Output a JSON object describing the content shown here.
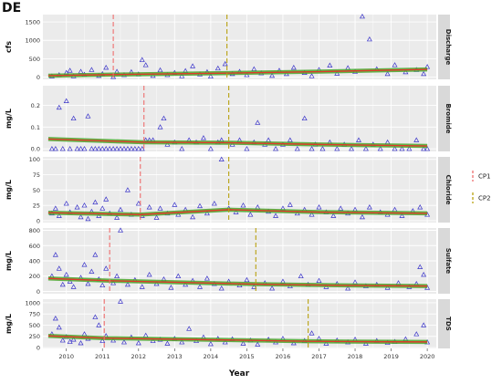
{
  "figure": {
    "title": "DE",
    "xlabel": "Year",
    "legend": {
      "items": [
        {
          "label": "CP1",
          "color": "#ef6e6e"
        },
        {
          "label": "CP2",
          "color": "#b8a10f"
        }
      ]
    },
    "colors": {
      "points": "#3a34c9",
      "trend_outer": "#49a82c",
      "trend_inner": "#e0392b",
      "panel_bg": "#ebebeb",
      "strip_bg": "#d9d9d9",
      "grid": "#ffffff"
    }
  },
  "chart_data": [
    {
      "type": "scatter",
      "strip": "Discharge",
      "ylabel": "cfs",
      "ylim": [
        -60,
        1700
      ],
      "yticks": [
        0,
        500,
        1000,
        1500
      ],
      "cp1": 2011.3,
      "cp2": 2014.45,
      "trend": [
        [
          2009.5,
          40
        ],
        [
          2011.3,
          70
        ],
        [
          2014.45,
          110
        ],
        [
          2017,
          150
        ],
        [
          2020,
          210
        ]
      ],
      "points": [
        [
          2009.6,
          25
        ],
        [
          2009.8,
          60
        ],
        [
          2010.0,
          120
        ],
        [
          2010.1,
          180
        ],
        [
          2010.2,
          30
        ],
        [
          2010.4,
          150
        ],
        [
          2010.5,
          70
        ],
        [
          2010.7,
          200
        ],
        [
          2010.9,
          40
        ],
        [
          2011.0,
          90
        ],
        [
          2011.1,
          260
        ],
        [
          2011.3,
          10
        ],
        [
          2011.4,
          150
        ],
        [
          2011.6,
          60
        ],
        [
          2011.8,
          140
        ],
        [
          2012.0,
          80
        ],
        [
          2012.1,
          470
        ],
        [
          2012.2,
          330
        ],
        [
          2012.4,
          40
        ],
        [
          2012.6,
          190
        ],
        [
          2012.8,
          60
        ],
        [
          2013.0,
          120
        ],
        [
          2013.2,
          30
        ],
        [
          2013.3,
          170
        ],
        [
          2013.5,
          300
        ],
        [
          2013.7,
          80
        ],
        [
          2013.9,
          140
        ],
        [
          2014.0,
          20
        ],
        [
          2014.2,
          240
        ],
        [
          2014.4,
          360
        ],
        [
          2014.6,
          90
        ],
        [
          2014.8,
          150
        ],
        [
          2015.0,
          60
        ],
        [
          2015.2,
          220
        ],
        [
          2015.4,
          110
        ],
        [
          2015.7,
          40
        ],
        [
          2015.9,
          180
        ],
        [
          2016.1,
          90
        ],
        [
          2016.3,
          260
        ],
        [
          2016.6,
          120
        ],
        [
          2016.8,
          30
        ],
        [
          2017.0,
          200
        ],
        [
          2017.3,
          320
        ],
        [
          2017.5,
          100
        ],
        [
          2017.8,
          250
        ],
        [
          2018.0,
          150
        ],
        [
          2018.2,
          1650
        ],
        [
          2018.4,
          1030
        ],
        [
          2018.6,
          220
        ],
        [
          2018.9,
          90
        ],
        [
          2019.1,
          330
        ],
        [
          2019.4,
          140
        ],
        [
          2019.7,
          200
        ],
        [
          2019.9,
          90
        ],
        [
          2020.0,
          280
        ]
      ]
    },
    {
      "type": "scatter",
      "strip": "Bromide",
      "ylabel": "mg/L",
      "ylim": [
        -0.012,
        0.29
      ],
      "yticks": [
        0.0,
        0.1,
        0.2
      ],
      "cp1": 2012.15,
      "cp2": 2014.5,
      "trend": [
        [
          2009.5,
          0.045
        ],
        [
          2012.15,
          0.03
        ],
        [
          2014.5,
          0.028
        ],
        [
          2017,
          0.02
        ],
        [
          2020,
          0.013
        ]
      ],
      "points": [
        [
          2009.6,
          0.0
        ],
        [
          2009.7,
          0.0
        ],
        [
          2009.8,
          0.19
        ],
        [
          2009.9,
          0.0
        ],
        [
          2010.0,
          0.22
        ],
        [
          2010.1,
          0.0
        ],
        [
          2010.2,
          0.14
        ],
        [
          2010.3,
          0.0
        ],
        [
          2010.4,
          0.0
        ],
        [
          2010.5,
          0.0
        ],
        [
          2010.6,
          0.15
        ],
        [
          2010.7,
          0.0
        ],
        [
          2010.8,
          0.0
        ],
        [
          2010.9,
          0.0
        ],
        [
          2011.0,
          0.0
        ],
        [
          2011.1,
          0.0
        ],
        [
          2011.2,
          0.0
        ],
        [
          2011.3,
          0.0
        ],
        [
          2011.4,
          0.0
        ],
        [
          2011.5,
          0.0
        ],
        [
          2011.6,
          0.0
        ],
        [
          2011.7,
          0.0
        ],
        [
          2011.8,
          0.0
        ],
        [
          2011.9,
          0.0
        ],
        [
          2012.0,
          0.0
        ],
        [
          2012.1,
          0.0
        ],
        [
          2012.2,
          0.04
        ],
        [
          2012.3,
          0.04
        ],
        [
          2012.4,
          0.04
        ],
        [
          2012.6,
          0.1
        ],
        [
          2012.7,
          0.14
        ],
        [
          2012.8,
          0.02
        ],
        [
          2013.0,
          0.03
        ],
        [
          2013.2,
          0.0
        ],
        [
          2013.4,
          0.04
        ],
        [
          2013.6,
          0.03
        ],
        [
          2013.8,
          0.05
        ],
        [
          2014.0,
          0.0
        ],
        [
          2014.2,
          0.03
        ],
        [
          2014.3,
          0.04
        ],
        [
          2014.6,
          0.02
        ],
        [
          2014.8,
          0.04
        ],
        [
          2015.0,
          0.0
        ],
        [
          2015.2,
          0.03
        ],
        [
          2015.3,
          0.12
        ],
        [
          2015.5,
          0.02
        ],
        [
          2015.6,
          0.04
        ],
        [
          2015.8,
          0.0
        ],
        [
          2016.0,
          0.02
        ],
        [
          2016.2,
          0.04
        ],
        [
          2016.4,
          0.0
        ],
        [
          2016.6,
          0.14
        ],
        [
          2016.8,
          0.0
        ],
        [
          2016.9,
          0.02
        ],
        [
          2017.1,
          0.0
        ],
        [
          2017.3,
          0.03
        ],
        [
          2017.5,
          0.0
        ],
        [
          2017.7,
          0.02
        ],
        [
          2017.9,
          0.0
        ],
        [
          2018.1,
          0.04
        ],
        [
          2018.3,
          0.0
        ],
        [
          2018.5,
          0.02
        ],
        [
          2018.7,
          0.0
        ],
        [
          2018.9,
          0.03
        ],
        [
          2019.1,
          0.0
        ],
        [
          2019.3,
          0.0
        ],
        [
          2019.5,
          0.0
        ],
        [
          2019.7,
          0.04
        ],
        [
          2019.9,
          0.0
        ],
        [
          2020.0,
          0.0
        ]
      ]
    },
    {
      "type": "scatter",
      "strip": "Chloride",
      "ylabel": "mg/L",
      "ylim": [
        -3,
        104
      ],
      "yticks": [
        0,
        25,
        50,
        75,
        100
      ],
      "cp1": 2012.05,
      "cp2": 2014.5,
      "trend": [
        [
          2009.5,
          13
        ],
        [
          2012.05,
          10
        ],
        [
          2014.5,
          18
        ],
        [
          2017,
          14
        ],
        [
          2020,
          12
        ]
      ],
      "points": [
        [
          2009.6,
          12
        ],
        [
          2009.7,
          20
        ],
        [
          2009.8,
          8
        ],
        [
          2010.0,
          28
        ],
        [
          2010.1,
          14
        ],
        [
          2010.3,
          22
        ],
        [
          2010.4,
          6
        ],
        [
          2010.5,
          25
        ],
        [
          2010.6,
          3
        ],
        [
          2010.7,
          15
        ],
        [
          2010.8,
          30
        ],
        [
          2010.9,
          8
        ],
        [
          2011.0,
          20
        ],
        [
          2011.1,
          35
        ],
        [
          2011.2,
          12
        ],
        [
          2011.4,
          5
        ],
        [
          2011.5,
          18
        ],
        [
          2011.7,
          50
        ],
        [
          2011.8,
          10
        ],
        [
          2012.0,
          28
        ],
        [
          2012.1,
          8
        ],
        [
          2012.3,
          22
        ],
        [
          2012.5,
          5
        ],
        [
          2012.6,
          20
        ],
        [
          2012.8,
          12
        ],
        [
          2013.0,
          26
        ],
        [
          2013.1,
          10
        ],
        [
          2013.3,
          18
        ],
        [
          2013.5,
          6
        ],
        [
          2013.7,
          24
        ],
        [
          2013.9,
          12
        ],
        [
          2014.1,
          28
        ],
        [
          2014.3,
          100
        ],
        [
          2014.5,
          20
        ],
        [
          2014.7,
          14
        ],
        [
          2014.9,
          25
        ],
        [
          2015.1,
          10
        ],
        [
          2015.3,
          22
        ],
        [
          2015.6,
          15
        ],
        [
          2015.8,
          8
        ],
        [
          2016.0,
          20
        ],
        [
          2016.2,
          26
        ],
        [
          2016.4,
          12
        ],
        [
          2016.6,
          18
        ],
        [
          2016.8,
          10
        ],
        [
          2017.0,
          22
        ],
        [
          2017.2,
          14
        ],
        [
          2017.4,
          8
        ],
        [
          2017.6,
          20
        ],
        [
          2017.8,
          12
        ],
        [
          2018.0,
          18
        ],
        [
          2018.2,
          6
        ],
        [
          2018.4,
          22
        ],
        [
          2018.7,
          14
        ],
        [
          2018.9,
          10
        ],
        [
          2019.1,
          18
        ],
        [
          2019.3,
          8
        ],
        [
          2019.6,
          16
        ],
        [
          2019.8,
          22
        ],
        [
          2020.0,
          10
        ]
      ]
    },
    {
      "type": "scatter",
      "strip": "Sulfate",
      "ylabel": "mg/L",
      "ylim": [
        -30,
        830
      ],
      "yticks": [
        0,
        200,
        400,
        600,
        800
      ],
      "cp1": 2011.2,
      "cp2": 2015.25,
      "trend": [
        [
          2009.5,
          170
        ],
        [
          2011.2,
          140
        ],
        [
          2015.25,
          95
        ],
        [
          2017.5,
          80
        ],
        [
          2020,
          70
        ]
      ],
      "points": [
        [
          2009.6,
          200
        ],
        [
          2009.7,
          480
        ],
        [
          2009.8,
          300
        ],
        [
          2009.9,
          90
        ],
        [
          2010.0,
          220
        ],
        [
          2010.1,
          130
        ],
        [
          2010.2,
          60
        ],
        [
          2010.4,
          180
        ],
        [
          2010.5,
          350
        ],
        [
          2010.6,
          100
        ],
        [
          2010.7,
          260
        ],
        [
          2010.8,
          480
        ],
        [
          2010.9,
          160
        ],
        [
          2011.0,
          80
        ],
        [
          2011.1,
          300
        ],
        [
          2011.3,
          110
        ],
        [
          2011.4,
          200
        ],
        [
          2011.5,
          800
        ],
        [
          2011.7,
          90
        ],
        [
          2011.9,
          150
        ],
        [
          2012.1,
          60
        ],
        [
          2012.3,
          220
        ],
        [
          2012.5,
          100
        ],
        [
          2012.7,
          160
        ],
        [
          2012.9,
          50
        ],
        [
          2013.1,
          200
        ],
        [
          2013.3,
          90
        ],
        [
          2013.5,
          140
        ],
        [
          2013.7,
          60
        ],
        [
          2013.9,
          170
        ],
        [
          2014.1,
          100
        ],
        [
          2014.3,
          40
        ],
        [
          2014.5,
          130
        ],
        [
          2014.8,
          80
        ],
        [
          2015.0,
          150
        ],
        [
          2015.2,
          60
        ],
        [
          2015.5,
          110
        ],
        [
          2015.7,
          40
        ],
        [
          2016.0,
          130
        ],
        [
          2016.2,
          70
        ],
        [
          2016.5,
          200
        ],
        [
          2016.7,
          90
        ],
        [
          2017.0,
          140
        ],
        [
          2017.2,
          60
        ],
        [
          2017.5,
          100
        ],
        [
          2017.8,
          40
        ],
        [
          2018.0,
          120
        ],
        [
          2018.3,
          70
        ],
        [
          2018.6,
          90
        ],
        [
          2018.9,
          50
        ],
        [
          2019.2,
          110
        ],
        [
          2019.5,
          60
        ],
        [
          2019.7,
          100
        ],
        [
          2019.8,
          320
        ],
        [
          2019.9,
          220
        ],
        [
          2020.0,
          50
        ]
      ]
    },
    {
      "type": "scatter",
      "strip": "TDS",
      "ylabel": "mg/L",
      "ylim": [
        -20,
        1080
      ],
      "yticks": [
        0,
        250,
        500,
        750,
        1000
      ],
      "cp1": 2011.05,
      "cp2": 2016.7,
      "trend": [
        [
          2009.5,
          260
        ],
        [
          2011.05,
          210
        ],
        [
          2016.7,
          140
        ],
        [
          2018.5,
          130
        ],
        [
          2020,
          125
        ]
      ],
      "points": [
        [
          2009.6,
          300
        ],
        [
          2009.7,
          650
        ],
        [
          2009.8,
          450
        ],
        [
          2009.9,
          160
        ],
        [
          2010.0,
          240
        ],
        [
          2010.1,
          130
        ],
        [
          2010.2,
          180
        ],
        [
          2010.4,
          100
        ],
        [
          2010.5,
          300
        ],
        [
          2010.6,
          200
        ],
        [
          2010.8,
          680
        ],
        [
          2010.9,
          500
        ],
        [
          2011.0,
          150
        ],
        [
          2011.1,
          260
        ],
        [
          2011.3,
          160
        ],
        [
          2011.5,
          1030
        ],
        [
          2011.6,
          120
        ],
        [
          2011.8,
          230
        ],
        [
          2012.0,
          100
        ],
        [
          2012.2,
          270
        ],
        [
          2012.4,
          150
        ],
        [
          2012.6,
          180
        ],
        [
          2012.8,
          90
        ],
        [
          2013.0,
          200
        ],
        [
          2013.2,
          120
        ],
        [
          2013.4,
          420
        ],
        [
          2013.6,
          150
        ],
        [
          2013.8,
          230
        ],
        [
          2014.0,
          80
        ],
        [
          2014.2,
          200
        ],
        [
          2014.4,
          120
        ],
        [
          2014.6,
          190
        ],
        [
          2014.9,
          90
        ],
        [
          2015.1,
          160
        ],
        [
          2015.3,
          70
        ],
        [
          2015.6,
          180
        ],
        [
          2015.8,
          120
        ],
        [
          2016.0,
          200
        ],
        [
          2016.3,
          100
        ],
        [
          2016.6,
          150
        ],
        [
          2016.8,
          320
        ],
        [
          2017.0,
          200
        ],
        [
          2017.2,
          90
        ],
        [
          2017.5,
          160
        ],
        [
          2017.8,
          120
        ],
        [
          2018.0,
          180
        ],
        [
          2018.3,
          90
        ],
        [
          2018.6,
          150
        ],
        [
          2018.9,
          110
        ],
        [
          2019.1,
          130
        ],
        [
          2019.4,
          190
        ],
        [
          2019.7,
          300
        ],
        [
          2019.9,
          500
        ],
        [
          2020.0,
          120
        ]
      ]
    }
  ],
  "x_axis": {
    "xlim": [
      2009.35,
      2020.25
    ],
    "ticks": [
      "2010",
      "2011",
      "2012",
      "2013",
      "2014",
      "2015",
      "2016",
      "2017",
      "2018",
      "2019",
      "2020"
    ],
    "tick_values": [
      2010,
      2011,
      2012,
      2013,
      2014,
      2015,
      2016,
      2017,
      2018,
      2019,
      2020
    ]
  }
}
